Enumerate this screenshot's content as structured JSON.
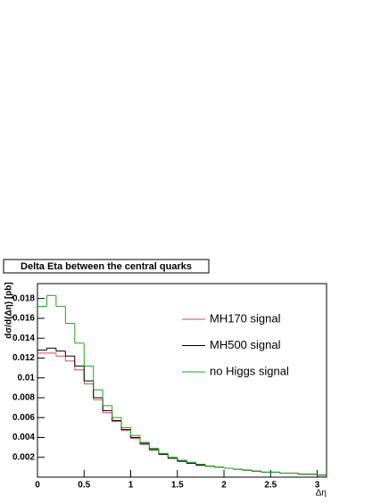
{
  "chart_data": {
    "type": "histogram",
    "title": "Delta Eta between the central quarks",
    "y_label": "dσ/d(Δη) [pb]",
    "x_label": "Δη",
    "bins": [
      0,
      0.1,
      0.2,
      0.3,
      0.4,
      0.5,
      0.6,
      0.7,
      0.8,
      0.9,
      1,
      1.1,
      1.2,
      1.3,
      1.4,
      1.5,
      1.6,
      1.7,
      1.8,
      1.9,
      2,
      2.1,
      2.2,
      2.3,
      2.4,
      2.5,
      2.6,
      2.7,
      2.8,
      2.9,
      3,
      3.1
    ],
    "series": [
      {
        "name": "MH170 signal",
        "color": "#d94a4a",
        "values": [
          0.0125,
          0.0125,
          0.0122,
          0.0117,
          0.0108,
          0.0094,
          0.0078,
          0.0065,
          0.0056,
          0.0047,
          0.0039,
          0.0033,
          0.0027,
          0.0023,
          0.0019,
          0.0016,
          0.0014,
          0.0012,
          0.0011,
          0.001,
          0.0009,
          0.0008,
          0.0007,
          0.0006,
          0.0005,
          0.0005,
          0.0004,
          0.0004,
          0.0003,
          0.0003,
          0.0002
        ]
      },
      {
        "name": "MH500 signal",
        "color": "#000000",
        "values": [
          0.0128,
          0.013,
          0.0127,
          0.0122,
          0.0112,
          0.0097,
          0.008,
          0.0067,
          0.0057,
          0.0048,
          0.004,
          0.0034,
          0.0028,
          0.0023,
          0.0019,
          0.0016,
          0.0014,
          0.0012,
          0.0011,
          0.001,
          0.0009,
          0.0008,
          0.0007,
          0.0006,
          0.0005,
          0.0005,
          0.0004,
          0.0004,
          0.0003,
          0.0003,
          0.0002
        ]
      },
      {
        "name": "no Higgs signal",
        "color": "#1fa31f",
        "values": [
          0.0172,
          0.0183,
          0.0172,
          0.0155,
          0.0135,
          0.0112,
          0.0088,
          0.0072,
          0.006,
          0.005,
          0.0042,
          0.0035,
          0.0029,
          0.0024,
          0.002,
          0.0017,
          0.0015,
          0.0013,
          0.0011,
          0.001,
          0.0009,
          0.0008,
          0.0007,
          0.0006,
          0.0005,
          0.0005,
          0.0004,
          0.0004,
          0.0003,
          0.0003,
          0.0002
        ]
      }
    ],
    "xlim": [
      0,
      3.1
    ],
    "ylim": [
      0,
      0.0195
    ],
    "xticks": [
      0,
      0.5,
      1,
      1.5,
      2,
      2.5,
      3
    ],
    "yticks": [
      0.002,
      0.004,
      0.006,
      0.008,
      0.01,
      0.012,
      0.014,
      0.016,
      0.018
    ]
  }
}
